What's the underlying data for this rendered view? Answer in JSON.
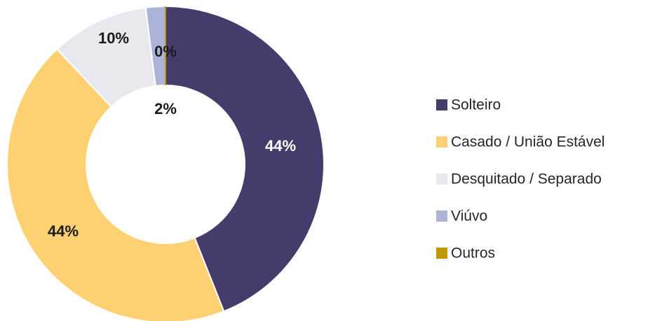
{
  "chart_data": {
    "type": "pie",
    "categories": [
      "Solteiro",
      "Casado / União Estável",
      "Desquitado / Separado",
      "Viúvo",
      "Outros"
    ],
    "values": [
      44,
      44,
      10,
      2,
      0
    ],
    "value_labels": [
      "44%",
      "44%",
      "10%",
      "2%",
      "0%"
    ],
    "colors": [
      "#463c6b",
      "#fdd072",
      "#e8e9ef",
      "#abb3d6",
      "#c0960c"
    ],
    "donut": true,
    "legend": "right"
  }
}
